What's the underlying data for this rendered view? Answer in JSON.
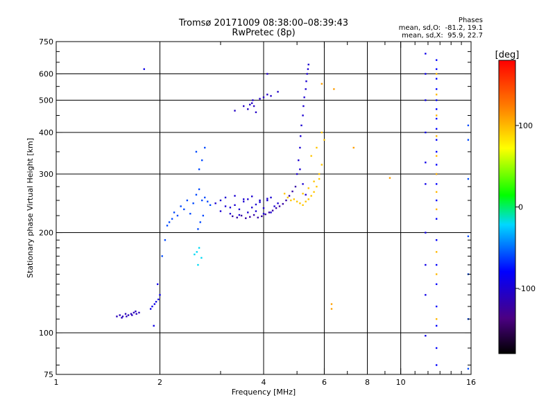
{
  "title": "Tromsø 20171009 08:38:00–08:39:43",
  "subtitle": "RwPretec (8p)",
  "phases": {
    "heading": "Phases",
    "o_line": "mean, sd,O:  -81.2, 19.1",
    "x_line": "mean, sd,X:  95.9, 22.7"
  },
  "colorbar": {
    "unit": "[deg]",
    "min": -180,
    "max": 180,
    "ticks": [
      {
        "value": 100,
        "label": "100"
      },
      {
        "value": 0,
        "label": "0"
      },
      {
        "value": -100,
        "label": "-100"
      }
    ]
  },
  "chart_data": {
    "type": "scatter",
    "title": "Tromsø 20171009 08:38:00–08:39:43",
    "subtitle": "RwPretec (8p)",
    "xlabel": "Frequency [MHz]",
    "ylabel": "Stationary phase Virtual Height [km]",
    "xscale": "log",
    "yscale": "log",
    "xlim": [
      1,
      16
    ],
    "ylim": [
      75,
      750
    ],
    "grid": true,
    "xticks": [
      {
        "value": 1,
        "label": "1"
      },
      {
        "value": 2,
        "label": "2"
      },
      {
        "value": 4,
        "label": "4"
      },
      {
        "value": 6,
        "label": "6"
      },
      {
        "value": 8,
        "label": "8"
      },
      {
        "value": 10,
        "label": "10"
      },
      {
        "value": 16,
        "label": "16"
      }
    ],
    "xgrid_major": [
      2,
      4,
      6,
      8,
      10
    ],
    "xminor": [
      3,
      5,
      7,
      9,
      11,
      12,
      13,
      14,
      15
    ],
    "yticks": [
      {
        "value": 75,
        "label": "75"
      },
      {
        "value": 100,
        "label": "100"
      },
      {
        "value": 200,
        "label": "200"
      },
      {
        "value": 300,
        "label": "300"
      },
      {
        "value": 400,
        "label": "400"
      },
      {
        "value": 500,
        "label": "500"
      },
      {
        "value": 600,
        "label": "600"
      },
      {
        "value": 750,
        "label": "750"
      }
    ],
    "ygrid_major": [
      100,
      200,
      300,
      400,
      500,
      600
    ],
    "yminor": [
      80,
      90,
      110,
      120,
      130,
      140,
      150,
      160,
      170,
      180,
      190,
      225,
      250,
      275,
      350,
      450,
      550,
      650,
      700
    ],
    "series": [
      {
        "x": [
          1.5,
          1.53,
          1.56,
          1.59,
          1.62,
          1.65,
          1.68,
          1.71,
          1.74,
          1.55,
          1.6,
          1.66,
          1.7
        ],
        "y": [
          112,
          113,
          112,
          114,
          113,
          114,
          115,
          114,
          115,
          111,
          112,
          113,
          116
        ],
        "phase": -110
      },
      {
        "x": [
          1.8,
          1.88,
          1.9,
          1.93,
          1.95,
          1.98,
          2.0,
          1.92,
          1.97
        ],
        "y": [
          620,
          118,
          120,
          122,
          124,
          126,
          130,
          105,
          140
        ],
        "phase": -90
      },
      {
        "x": [
          2.03,
          2.07,
          2.1,
          2.13,
          2.17,
          2.2,
          2.25,
          2.3,
          2.35,
          2.4,
          2.45,
          2.5,
          2.55,
          2.6,
          2.65,
          2.7,
          2.75,
          2.8,
          2.6,
          2.65,
          2.55,
          2.7,
          2.58,
          2.62,
          2.67
        ],
        "y": [
          170,
          190,
          210,
          215,
          220,
          230,
          225,
          240,
          235,
          250,
          228,
          245,
          260,
          270,
          250,
          255,
          248,
          242,
          310,
          330,
          350,
          360,
          205,
          215,
          225
        ],
        "phase": -60
      },
      {
        "x": [
          2.56,
          2.6,
          2.64,
          2.52,
          2.58
        ],
        "y": [
          175,
          180,
          168,
          172,
          160
        ],
        "phase": -20
      },
      {
        "x": [
          2.9,
          3.0,
          3.1,
          3.2,
          3.3,
          3.4,
          3.5,
          3.6,
          3.7,
          3.8,
          3.9,
          4.0,
          4.1,
          4.2,
          4.3,
          4.4,
          3.0,
          3.2,
          3.4,
          3.6,
          3.8,
          4.0,
          4.2,
          3.1,
          3.3,
          3.5,
          3.7,
          3.9,
          4.1
        ],
        "y": [
          245,
          250,
          240,
          238,
          242,
          235,
          248,
          252,
          238,
          243,
          247,
          237,
          250,
          255,
          240,
          245,
          232,
          228,
          226,
          230,
          232,
          228,
          230,
          255,
          258,
          252,
          257,
          250,
          253
        ],
        "phase": -100
      },
      {
        "x": [
          3.25,
          3.35,
          3.45,
          3.55,
          3.65,
          3.75,
          3.85,
          3.95,
          4.05,
          4.15,
          4.25,
          4.35,
          4.45,
          4.55,
          4.65,
          4.75,
          4.85,
          4.95
        ],
        "y": [
          224,
          222,
          225,
          221,
          223,
          226,
          222,
          224,
          227,
          230,
          233,
          237,
          240,
          244,
          250,
          258,
          266,
          275
        ],
        "phase": -120
      },
      {
        "x": [
          4.6,
          4.7,
          4.8,
          4.9,
          5.0,
          5.1,
          5.2,
          5.3,
          5.4,
          5.5,
          5.6,
          5.7,
          5.8,
          5.9,
          6.0,
          5.2,
          5.4,
          5.6,
          5.8,
          5.5,
          5.7,
          5.9
        ],
        "y": [
          262,
          255,
          250,
          252,
          248,
          245,
          242,
          248,
          252,
          258,
          265,
          275,
          290,
          320,
          380,
          262,
          272,
          285,
          300,
          340,
          360,
          400
        ],
        "phase": 95
      },
      {
        "x": [
          5.0,
          5.05,
          5.1,
          5.12,
          5.15,
          5.2,
          5.22,
          5.25,
          5.3,
          5.32,
          5.35,
          5.38,
          5.4,
          5.2,
          5.3,
          5.1
        ],
        "y": [
          300,
          330,
          360,
          390,
          420,
          450,
          480,
          510,
          540,
          570,
          600,
          620,
          640,
          280,
          260,
          310
        ],
        "phase": -100
      },
      {
        "x": [
          3.3,
          3.5,
          3.6,
          3.7,
          3.8,
          3.65,
          3.72,
          3.9,
          4.0,
          4.1,
          4.2,
          4.4,
          4.1,
          3.75
        ],
        "y": [
          465,
          480,
          470,
          490,
          460,
          485,
          500,
          505,
          510,
          520,
          515,
          530,
          600,
          480
        ],
        "phase": -105
      },
      {
        "x": [
          6.3,
          6.3,
          7.3,
          9.3,
          5.9,
          6.4
        ],
        "y": [
          122,
          118,
          360,
          292,
          560,
          540
        ],
        "phase": 110
      },
      {
        "x": [
          11.8,
          11.8,
          11.8,
          11.8,
          11.8,
          11.8,
          11.8,
          11.8,
          11.8,
          11.8
        ],
        "y": [
          690,
          600,
          500,
          400,
          325,
          280,
          200,
          160,
          130,
          98
        ],
        "phase": -90
      },
      {
        "x": [
          12.7,
          12.7,
          12.7,
          12.7,
          12.7,
          12.7,
          12.7,
          12.7,
          12.7,
          12.7,
          12.7,
          12.7,
          12.7,
          12.7,
          12.7,
          12.7,
          12.7,
          12.7,
          12.7,
          12.7,
          12.7,
          12.7
        ],
        "y": [
          660,
          620,
          580,
          540,
          500,
          470,
          440,
          410,
          380,
          350,
          320,
          300,
          280,
          250,
          220,
          190,
          160,
          140,
          120,
          105,
          90,
          80
        ],
        "phase": -80
      },
      {
        "x": [
          12.7,
          12.7,
          12.7,
          12.7,
          12.7,
          12.7,
          12.7,
          12.7,
          12.7,
          12.7,
          12.7
        ],
        "y": [
          600,
          520,
          450,
          390,
          340,
          300,
          265,
          235,
          175,
          150,
          110
        ],
        "phase": 100
      },
      {
        "x": [
          15.7,
          15.7,
          15.7,
          15.7,
          15.7,
          15.7,
          15.7
        ],
        "y": [
          420,
          380,
          290,
          195,
          150,
          110,
          78
        ],
        "phase": -60
      }
    ]
  }
}
